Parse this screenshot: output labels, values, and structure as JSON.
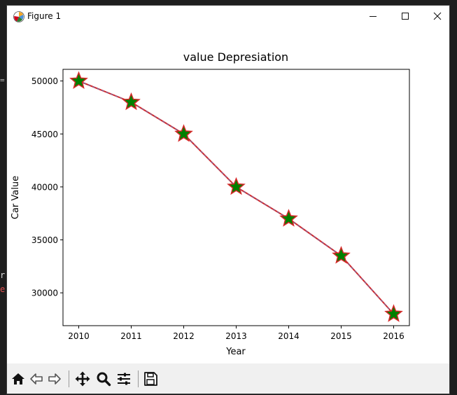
{
  "window": {
    "title": "Figure 1",
    "minimize_icon": "minimize-icon",
    "maximize_icon": "maximize-icon",
    "close_icon": "close-icon"
  },
  "background_fragments": {
    "line1": "=",
    "line2": "r",
    "line3": "e"
  },
  "toolbar": {
    "home_icon": "home-icon",
    "back_icon": "back-arrow-icon",
    "forward_icon": "forward-arrow-icon",
    "pan_icon": "pan-icon",
    "zoom_icon": "zoom-icon",
    "configure_icon": "configure-subplots-icon",
    "save_icon": "save-icon"
  },
  "chart_data": {
    "type": "line",
    "title": "value Depresiation",
    "xlabel": "Year",
    "ylabel": "Car Value",
    "x": [
      2010,
      2011,
      2012,
      2013,
      2014,
      2015,
      2016
    ],
    "series": [
      {
        "values": [
          50000,
          48000,
          45000,
          40000,
          37000,
          33500,
          28000
        ],
        "line_color": "#d62728",
        "dash_color": "#6f6fb0",
        "marker": "star",
        "marker_face": "#008000",
        "marker_edge": "#d62728"
      }
    ],
    "xlim": [
      2009.7,
      2016.3
    ],
    "ylim": [
      26900,
      51100
    ],
    "xticks": [
      "2010",
      "2011",
      "2012",
      "2013",
      "2014",
      "2015",
      "2016"
    ],
    "yticks": [
      30000,
      35000,
      40000,
      45000,
      50000
    ],
    "ytick_labels": [
      "30000",
      "35000",
      "40000",
      "45000",
      "50000"
    ],
    "grid": false
  }
}
